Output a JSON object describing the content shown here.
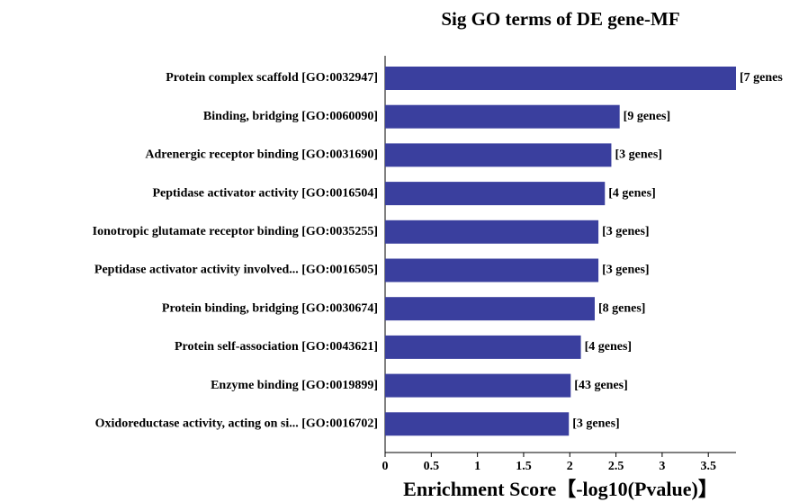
{
  "chart_data": {
    "type": "barh",
    "title": "Sig GO terms of DE gene-MF",
    "categories": [
      "Protein complex scaffold [GO:0032947]",
      "Binding, bridging [GO:0060090]",
      "Adrenergic receptor binding [GO:0031690]",
      "Peptidase activator activity [GO:0016504]",
      "Ionotropic glutamate receptor binding [GO:0035255]",
      "Peptidase activator activity involved... [GO:0016505]",
      "Protein binding, bridging [GO:0030674]",
      "Protein self-association [GO:0043621]",
      "Enzyme binding [GO:0019899]",
      "Oxidoreductase activity, acting on si... [GO:0016702]"
    ],
    "values": [
      3.8,
      2.54,
      2.45,
      2.38,
      2.31,
      2.31,
      2.27,
      2.12,
      2.01,
      1.99
    ],
    "annotations": [
      "[7 genes",
      "[9 genes]",
      "[3 genes]",
      "[4 genes]",
      "[3 genes]",
      "[3 genes]",
      "[8 genes]",
      "[4 genes]",
      "[43 genes]",
      "[3 genes]"
    ],
    "color": "#3a3f9e",
    "xlabel": "Enrichment Score【-log10(Pvalue)】",
    "xlim": [
      0,
      3.8
    ],
    "xticks": [
      0,
      0.5,
      1,
      1.5,
      2,
      2.5,
      3,
      3.5
    ]
  }
}
